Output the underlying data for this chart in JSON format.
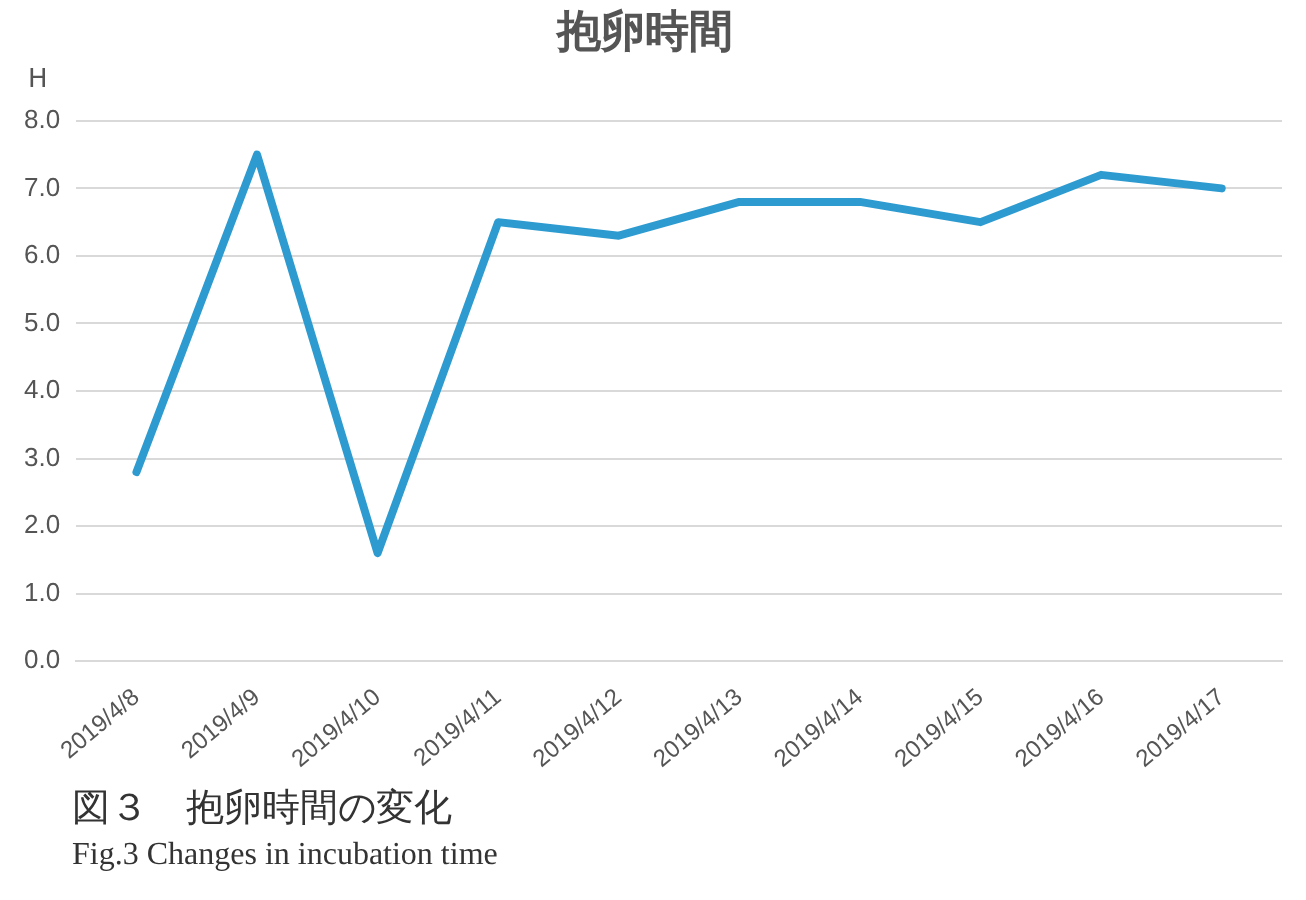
{
  "chart_data": {
    "type": "line",
    "title": "抱卵時間",
    "ylabel": "H",
    "categories": [
      "2019/4/8",
      "2019/4/9",
      "2019/4/10",
      "2019/4/11",
      "2019/4/12",
      "2019/4/13",
      "2019/4/14",
      "2019/4/15",
      "2019/4/16",
      "2019/4/17"
    ],
    "series": [
      {
        "color": "#2e9bd0",
        "values": [
          2.8,
          7.5,
          1.6,
          6.5,
          6.3,
          6.8,
          6.8,
          6.5,
          7.2,
          7.0
        ]
      }
    ],
    "ylim": [
      0,
      8
    ],
    "yticks": [
      {
        "value": 0,
        "label": "0.0"
      },
      {
        "value": 1,
        "label": "1.0"
      },
      {
        "value": 2,
        "label": "2.0"
      },
      {
        "value": 3,
        "label": "3.0"
      },
      {
        "value": 4,
        "label": "4.0"
      },
      {
        "value": 5,
        "label": "5.0"
      },
      {
        "value": 6,
        "label": "6.0"
      },
      {
        "value": 7,
        "label": "7.0"
      },
      {
        "value": 8,
        "label": "8.0"
      }
    ],
    "grid": "y",
    "legend": false,
    "marker": "none",
    "line_style": "solid",
    "annotations": [
      "図３　抱卵時間の変化",
      "Fig.3  Changes in incubation time"
    ]
  }
}
